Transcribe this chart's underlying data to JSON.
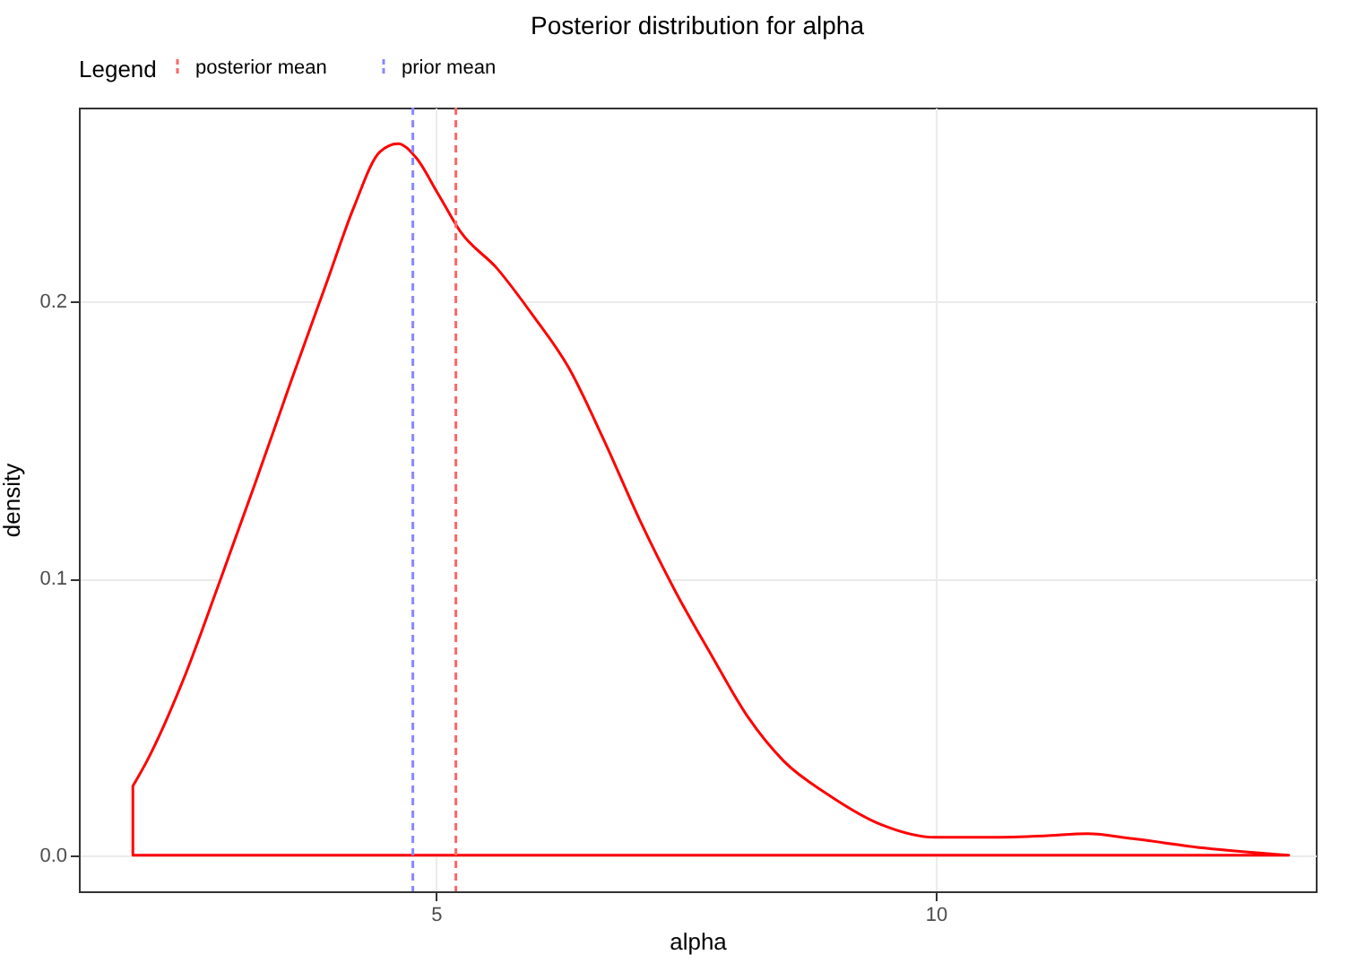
{
  "chart_data": {
    "type": "area",
    "title": "Posterior distribution for alpha",
    "xlabel": "alpha",
    "ylabel": "density",
    "legend_title": "Legend",
    "legend": "top",
    "grid": true,
    "x": [
      1.97,
      2.11,
      2.47,
      2.83,
      3.19,
      3.55,
      3.91,
      4.18,
      4.44,
      4.62,
      4.8,
      5.02,
      5.25,
      5.61,
      5.97,
      6.33,
      6.68,
      7.04,
      7.4,
      7.76,
      8.12,
      8.48,
      8.92,
      9.46,
      10.0,
      10.54,
      11.08,
      11.52,
      11.97,
      12.69,
      13.53
    ],
    "series": [
      {
        "color": "#ff0000",
        "values": [
          0.025,
          0.034,
          0.063,
          0.098,
          0.134,
          0.171,
          0.207,
          0.234,
          0.254,
          0.257,
          0.252,
          0.239,
          0.225,
          0.212,
          0.195,
          0.176,
          0.15,
          0.121,
          0.095,
          0.072,
          0.05,
          0.034,
          0.022,
          0.011,
          0.0065,
          0.0065,
          0.007,
          0.0078,
          0.006,
          0.0026,
          0
        ]
      }
    ],
    "xlim": [
      1.43,
      13.8
    ],
    "xticks": [
      5,
      10
    ],
    "ylim": [
      -0.013,
      0.27
    ],
    "yticks": [
      {
        "value": 0,
        "label": "0.0"
      },
      0.1,
      0.2
    ],
    "ref_lines": [
      {
        "axis": "x",
        "value": 5.2,
        "label": "posterior mean",
        "color": "#ff6666",
        "line_style": "dashed"
      },
      {
        "axis": "x",
        "value": 4.77,
        "label": "prior mean",
        "color": "#8888ff",
        "line_style": "dashed"
      }
    ]
  }
}
